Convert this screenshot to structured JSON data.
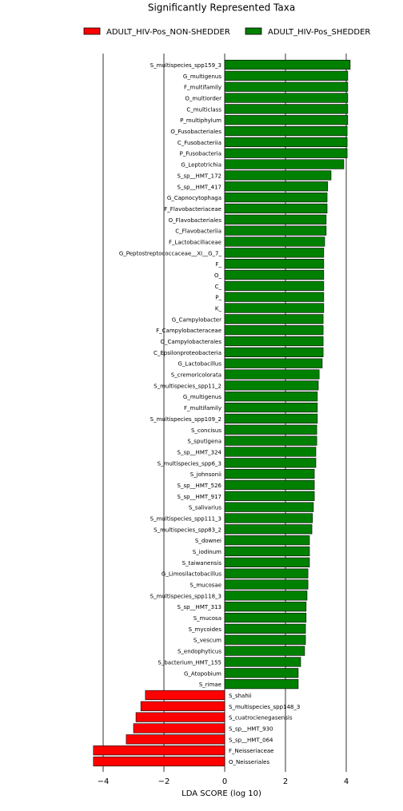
{
  "chart_data": {
    "type": "barh",
    "title": "Significantly Represented Taxa",
    "xlabel": "LDA SCORE (log 10)",
    "categories": [
      "S_multispecies_spp159_3",
      "G_multigenus",
      "F_multifamily",
      "O_multiorder",
      "C_multiclass",
      "P_multiphylum",
      "O_Fusobacteriales",
      "C_Fusobacteriia",
      "P_Fusobacteria",
      "G_Leptotrichia",
      "S_sp__HMT_172",
      "S_sp__HMT_417",
      "G_Capnocytophaga",
      "F_Flavobacteriaceae",
      "O_Flavobacteriales",
      "C_Flavobacteriia",
      "F_Lactobacillaceae",
      "G_Peptostreptococcaceae__XI__G_7_",
      "F_",
      "O_",
      "C_",
      "P_",
      "K_",
      "G_Campylobacter",
      "F_Campylobacteraceae",
      "O_Campylobacterales",
      "C_Epsilonproteobacteria",
      "G_Lactobacillus",
      "S_cremoricolorata",
      "S_multispecies_spp11_2",
      "G_multigenus",
      "F_multifamily",
      "S_multispecies_spp109_2",
      "S_concisus",
      "S_sputigena",
      "S_sp__HMT_324",
      "S_multispecies_spp6_3",
      "S_johnsonii",
      "S_sp__HMT_526",
      "S_sp__HMT_917",
      "S_salivarius",
      "S_multispecies_spp111_3",
      "S_multispecies_spp83_2",
      "S_downei",
      "S_iodinum",
      "S_taiwanensis",
      "G_Limosilactobacillus",
      "S_mucosae",
      "S_multispecies_spp118_3",
      "S_sp__HMT_313",
      "S_mucosa",
      "S_mycoides",
      "S_vescum",
      "S_endophyticus",
      "S_bacterium_HMT_155",
      "G_Atopobium",
      "S_rimae",
      "S_shahii",
      "S_multispecies_spp148_3",
      "S_cuatrocienegasensis",
      "S_sp__HMT_930",
      "S_sp__HMT_064",
      "F_Neisseriaceae",
      "O_Neisseriales"
    ],
    "series": [
      {
        "name": "ADULT_HIV-Pos_NON-SHEDDER",
        "color": "#ff0000",
        "values": [
          null,
          null,
          null,
          null,
          null,
          null,
          null,
          null,
          null,
          null,
          null,
          null,
          null,
          null,
          null,
          null,
          null,
          null,
          null,
          null,
          null,
          null,
          null,
          null,
          null,
          null,
          null,
          null,
          null,
          null,
          null,
          null,
          null,
          null,
          null,
          null,
          null,
          null,
          null,
          null,
          null,
          null,
          null,
          null,
          null,
          null,
          null,
          null,
          null,
          null,
          null,
          null,
          null,
          null,
          null,
          null,
          null,
          -2.61,
          -2.76,
          -2.92,
          -3.0,
          -3.24,
          -4.32,
          -4.32
        ]
      },
      {
        "name": "ADULT_HIV-Pos_SHEDDER",
        "color": "#008000",
        "values": [
          4.13,
          4.05,
          4.05,
          4.05,
          4.05,
          4.05,
          4.03,
          4.03,
          4.03,
          3.92,
          3.5,
          3.39,
          3.37,
          3.37,
          3.34,
          3.34,
          3.29,
          3.26,
          3.26,
          3.26,
          3.26,
          3.26,
          3.26,
          3.24,
          3.24,
          3.24,
          3.24,
          3.21,
          3.11,
          3.08,
          3.05,
          3.05,
          3.05,
          3.03,
          3.03,
          3.0,
          3.0,
          2.95,
          2.95,
          2.95,
          2.92,
          2.89,
          2.87,
          2.79,
          2.79,
          2.79,
          2.74,
          2.74,
          2.71,
          2.68,
          2.68,
          2.66,
          2.66,
          2.63,
          2.5,
          2.42,
          2.42,
          null,
          null,
          null,
          null,
          null,
          null,
          null
        ]
      }
    ],
    "xlim": [
      -4.8,
      4.9
    ],
    "xticks": [
      {
        "value": -4,
        "label": "−4"
      },
      {
        "value": -2,
        "label": "−2"
      },
      0,
      2,
      4
    ],
    "grid": true
  }
}
